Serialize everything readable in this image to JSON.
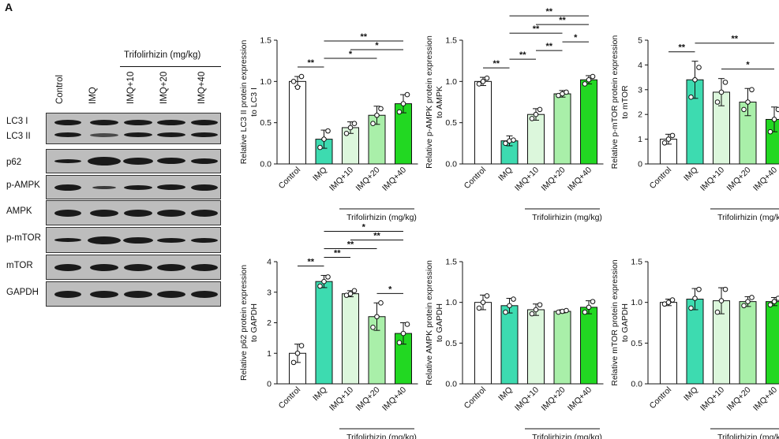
{
  "figure": {
    "panel_letter": "A",
    "treatment_group_label": "Trifolirhizin (mg/kg)",
    "lanes": [
      "Control",
      "IMQ",
      "IMQ+10",
      "IMQ+20",
      "IMQ+40"
    ],
    "blot_rows": [
      "LC3 I",
      "LC3 II",
      "p62",
      "p-AMPK",
      "AMPK",
      "p-mTOR",
      "mTOR",
      "GAPDH"
    ],
    "colors": {
      "bar_outline": "#111111",
      "control": "#ffffff",
      "imq": "#3ddbb0",
      "imq10": "#dcf7dc",
      "imq20": "#a9efa9",
      "imq40": "#22d822"
    }
  },
  "chart_data": [
    {
      "type": "bar",
      "ylabel": [
        "Relative LC3 II protein expression",
        "to LC3 I"
      ],
      "categories": [
        "Control",
        "IMQ",
        "IMQ+10",
        "IMQ+20",
        "IMQ+40"
      ],
      "values": [
        1.0,
        0.3,
        0.44,
        0.59,
        0.73
      ],
      "errors": [
        0.06,
        0.11,
        0.07,
        0.11,
        0.11
      ],
      "points": [
        [
          1.0,
          0.93,
          1.06
        ],
        [
          0.2,
          0.3,
          0.4
        ],
        [
          0.37,
          0.44,
          0.49
        ],
        [
          0.49,
          0.59,
          0.67
        ],
        [
          0.63,
          0.73,
          0.84
        ]
      ],
      "yticks": [
        "0.0",
        "0.5",
        "1.0",
        "1.5"
      ],
      "ylim": [
        0,
        1.5
      ],
      "xgroup_label": "Trifolirhizin (mg/kg)",
      "significance": [
        {
          "from": 0,
          "to": 1,
          "label": "**"
        },
        {
          "from": 1,
          "to": 3,
          "label": "*"
        },
        {
          "from": 1,
          "to": 4,
          "label": "**"
        },
        {
          "from": 2,
          "to": 4,
          "label": "*"
        }
      ]
    },
    {
      "type": "bar",
      "ylabel": [
        "Relative p-AMPK protein expression",
        "to AMPK"
      ],
      "categories": [
        "Control",
        "IMQ",
        "IMQ+10",
        "IMQ+20",
        "IMQ+40"
      ],
      "values": [
        1.0,
        0.28,
        0.6,
        0.85,
        1.02
      ],
      "errors": [
        0.05,
        0.06,
        0.07,
        0.04,
        0.05
      ],
      "points": [
        [
          0.97,
          1.0,
          1.04
        ],
        [
          0.25,
          0.28,
          0.29
        ],
        [
          0.55,
          0.6,
          0.66
        ],
        [
          0.83,
          0.85,
          0.87
        ],
        [
          0.97,
          1.02,
          1.06
        ]
      ],
      "yticks": [
        "0.0",
        "0.5",
        "1.0",
        "1.5"
      ],
      "ylim": [
        0,
        1.5
      ],
      "xgroup_label": "Trifolirhizin (mg/kg)",
      "significance": [
        {
          "from": 0,
          "to": 1,
          "label": "**"
        },
        {
          "from": 1,
          "to": 2,
          "label": "**"
        },
        {
          "from": 1,
          "to": 3,
          "label": "**"
        },
        {
          "from": 1,
          "to": 4,
          "label": "**"
        },
        {
          "from": 2,
          "to": 3,
          "label": "**"
        },
        {
          "from": 2,
          "to": 4,
          "label": "**"
        },
        {
          "from": 3,
          "to": 4,
          "label": "*"
        }
      ]
    },
    {
      "type": "bar",
      "ylabel": [
        "Relative p-mTOR protein expression",
        "to mTOR"
      ],
      "categories": [
        "Control",
        "IMQ",
        "IMQ+10",
        "IMQ+20",
        "IMQ+40"
      ],
      "values": [
        1.0,
        3.4,
        2.9,
        2.5,
        1.8
      ],
      "errors": [
        0.2,
        0.75,
        0.55,
        0.55,
        0.5
      ],
      "points": [
        [
          0.85,
          1.0,
          1.15
        ],
        [
          2.7,
          3.4,
          3.9
        ],
        [
          2.5,
          2.9,
          3.3
        ],
        [
          2.2,
          2.5,
          3.0
        ],
        [
          1.3,
          1.8,
          2.2
        ]
      ],
      "yticks": [
        "0",
        "1",
        "2",
        "3",
        "4",
        "5"
      ],
      "ylim": [
        0,
        5
      ],
      "xgroup_label": "Trifolirhizin (mg/kg)",
      "significance": [
        {
          "from": 0,
          "to": 1,
          "label": "**"
        },
        {
          "from": 1,
          "to": 4,
          "label": "**"
        },
        {
          "from": 2,
          "to": 4,
          "label": "*"
        }
      ]
    },
    {
      "type": "bar",
      "ylabel": [
        "Relative p62 protein expression",
        "to GAPDH"
      ],
      "categories": [
        "Control",
        "IMQ",
        "IMQ+10",
        "IMQ+20",
        "IMQ+40"
      ],
      "values": [
        1.0,
        3.35,
        2.95,
        2.2,
        1.65
      ],
      "errors": [
        0.3,
        0.2,
        0.1,
        0.45,
        0.35
      ],
      "points": [
        [
          0.7,
          1.0,
          1.25
        ],
        [
          3.2,
          3.35,
          3.5
        ],
        [
          2.9,
          2.95,
          3.05
        ],
        [
          1.85,
          2.2,
          2.65
        ],
        [
          1.35,
          1.65,
          1.95
        ]
      ],
      "yticks": [
        "0",
        "1",
        "2",
        "3",
        "4"
      ],
      "ylim": [
        0,
        4
      ],
      "xgroup_label": "Trifolirhizin (mg/kg)",
      "significance": [
        {
          "from": 0,
          "to": 1,
          "label": "**"
        },
        {
          "from": 1,
          "to": 2,
          "label": "**"
        },
        {
          "from": 1,
          "to": 3,
          "label": "**"
        },
        {
          "from": 1,
          "to": 4,
          "label": "*"
        },
        {
          "from": 2,
          "to": 4,
          "label": "**"
        },
        {
          "from": 3,
          "to": 4,
          "label": "*"
        }
      ]
    },
    {
      "type": "bar",
      "ylabel": [
        "Relative AMPK protein expression",
        "to GAPDH"
      ],
      "categories": [
        "Control",
        "IMQ",
        "IMQ+10",
        "IMQ+20",
        "IMQ+40"
      ],
      "values": [
        1.0,
        0.96,
        0.91,
        0.89,
        0.94
      ],
      "errors": [
        0.09,
        0.09,
        0.07,
        0.02,
        0.08
      ],
      "points": [
        [
          0.93,
          1.0,
          1.08
        ],
        [
          0.88,
          0.96,
          1.04
        ],
        [
          0.86,
          0.91,
          0.97
        ],
        [
          0.88,
          0.89,
          0.9
        ],
        [
          0.88,
          0.94,
          1.01
        ]
      ],
      "yticks": [
        "0.0",
        "0.5",
        "1.0",
        "1.5"
      ],
      "ylim": [
        0,
        1.5
      ],
      "xgroup_label": "Trifolirhizin (mg/kg)",
      "significance": []
    },
    {
      "type": "bar",
      "ylabel": [
        "Relative mTOR protein expression",
        "to GAPDH"
      ],
      "categories": [
        "Control",
        "IMQ",
        "IMQ+10",
        "IMQ+20",
        "IMQ+40"
      ],
      "values": [
        1.0,
        1.04,
        1.02,
        1.01,
        1.01
      ],
      "errors": [
        0.04,
        0.13,
        0.16,
        0.06,
        0.05
      ],
      "points": [
        [
          0.98,
          1.0,
          1.03
        ],
        [
          0.93,
          1.05,
          1.16
        ],
        [
          0.88,
          1.02,
          1.16
        ],
        [
          0.96,
          1.01,
          1.06
        ],
        [
          0.97,
          1.01,
          1.05
        ]
      ],
      "yticks": [
        "0.0",
        "0.5",
        "1.0",
        "1.5"
      ],
      "ylim": [
        0,
        1.5
      ],
      "xgroup_label": "Trifolirhizin (mg/kg)",
      "significance": []
    }
  ]
}
